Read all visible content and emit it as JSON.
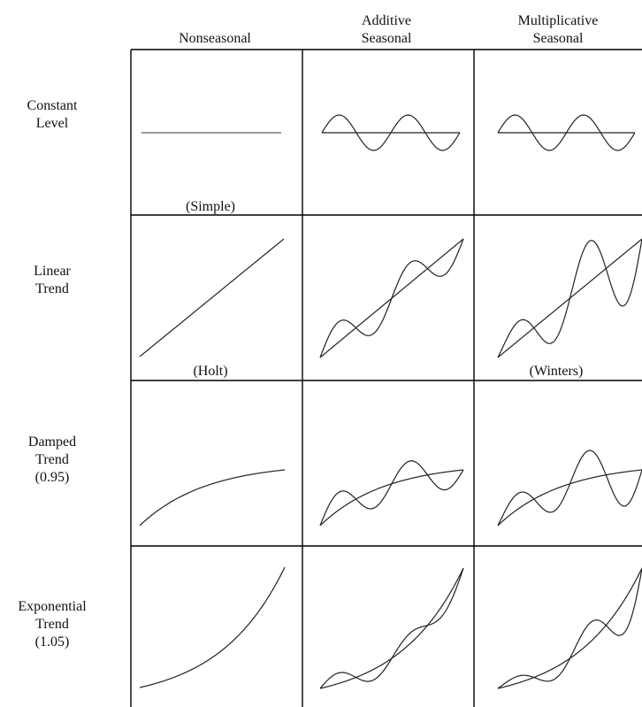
{
  "columns": [
    {
      "line1": "",
      "line2": "Nonseasonal"
    },
    {
      "line1": "Additive",
      "line2": "Seasonal"
    },
    {
      "line1": "Multiplicative",
      "line2": "Seasonal"
    }
  ],
  "rows": [
    {
      "lines": [
        "Constant",
        "Level"
      ]
    },
    {
      "lines": [
        "Linear",
        "Trend"
      ]
    },
    {
      "lines": [
        "Damped",
        "Trend",
        "(0.95)"
      ]
    },
    {
      "lines": [
        "Exponential",
        "Trend",
        "(1.05)"
      ]
    }
  ],
  "method_labels": {
    "simple": "(Simple)",
    "holt": "(Holt)",
    "winters": "(Winters)"
  },
  "colors": {
    "line": "#222222",
    "flat_line": "#777777",
    "border": "#000000"
  }
}
